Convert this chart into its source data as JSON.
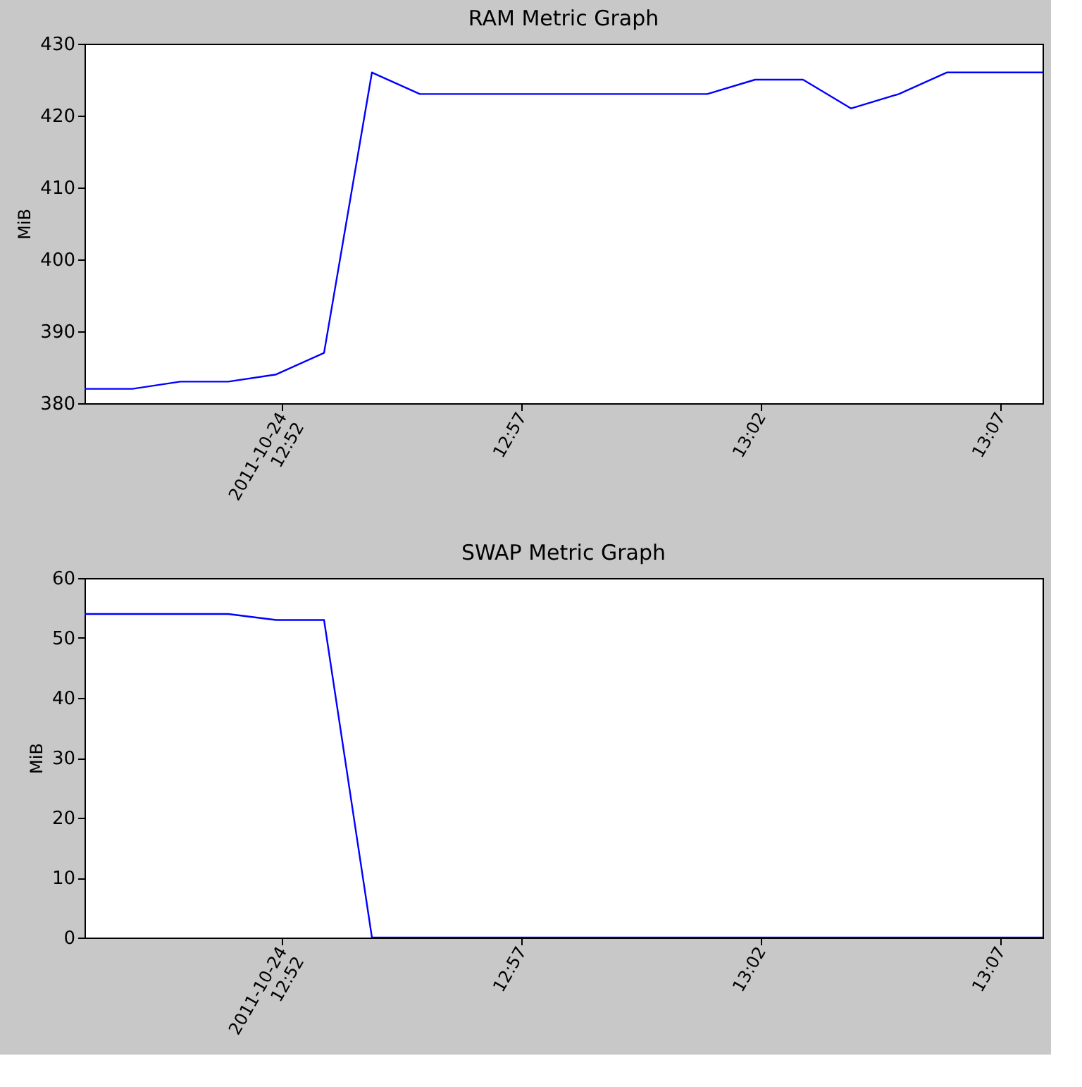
{
  "chart_data": [
    {
      "type": "line",
      "title": "RAM Metric Graph",
      "ylabel": "MiB",
      "grid": false,
      "line_style": "solid",
      "marker": "none",
      "x": [
        "2011-10-24T12:47:53",
        "2011-10-24T12:48:53",
        "2011-10-24T12:49:53",
        "2011-10-24T12:50:53",
        "2011-10-24T12:51:53",
        "2011-10-24T12:52:53",
        "2011-10-24T12:53:53",
        "2011-10-24T12:54:53",
        "2011-10-24T12:55:53",
        "2011-10-24T12:56:53",
        "2011-10-24T12:57:53",
        "2011-10-24T12:58:53",
        "2011-10-24T12:59:53",
        "2011-10-24T13:00:53",
        "2011-10-24T13:01:53",
        "2011-10-24T13:02:53",
        "2011-10-24T13:03:53",
        "2011-10-24T13:04:53",
        "2011-10-24T13:05:53",
        "2011-10-24T13:06:53",
        "2011-10-24T13:07:53"
      ],
      "series": [
        {
          "color": "#0000ff",
          "values": [
            382,
            382,
            383,
            383,
            384,
            387,
            426,
            423,
            423,
            423,
            423,
            423,
            423,
            423,
            425,
            425,
            421,
            423,
            426,
            426,
            426
          ]
        }
      ],
      "xlim": [
        "2011-10-24T12:47:53",
        "2011-10-24T13:07:53"
      ],
      "xticks": [
        {
          "value": "2011-10-24T12:52",
          "label": "2011-10-24\n12:52"
        },
        {
          "value": "2011-10-24T12:57",
          "label": "12:57"
        },
        {
          "value": "2011-10-24T13:02",
          "label": "13:02"
        },
        {
          "value": "2011-10-24T13:07",
          "label": "13:07"
        }
      ],
      "ylim": [
        380,
        430
      ],
      "yticks": [
        380,
        390,
        400,
        410,
        420,
        430
      ]
    },
    {
      "type": "line",
      "title": "SWAP Metric Graph",
      "ylabel": "MiB",
      "grid": false,
      "line_style": "solid",
      "marker": "none",
      "x": [
        "2011-10-24T12:47:53",
        "2011-10-24T12:48:53",
        "2011-10-24T12:49:53",
        "2011-10-24T12:50:53",
        "2011-10-24T12:51:53",
        "2011-10-24T12:52:53",
        "2011-10-24T12:53:53",
        "2011-10-24T12:54:53",
        "2011-10-24T12:55:53",
        "2011-10-24T12:56:53",
        "2011-10-24T12:57:53",
        "2011-10-24T12:58:53",
        "2011-10-24T12:59:53",
        "2011-10-24T13:00:53",
        "2011-10-24T13:01:53",
        "2011-10-24T13:02:53",
        "2011-10-24T13:03:53",
        "2011-10-24T13:04:53",
        "2011-10-24T13:05:53",
        "2011-10-24T13:06:53",
        "2011-10-24T13:07:53"
      ],
      "series": [
        {
          "color": "#0000ff",
          "values": [
            54,
            54,
            54,
            54,
            53,
            53,
            0,
            0,
            0,
            0,
            0,
            0,
            0,
            0,
            0,
            0,
            0,
            0,
            0,
            0,
            0
          ]
        }
      ],
      "xlim": [
        "2011-10-24T12:47:53",
        "2011-10-24T13:07:53"
      ],
      "xticks": [
        {
          "value": "2011-10-24T12:52",
          "label": "2011-10-24\n12:52"
        },
        {
          "value": "2011-10-24T12:57",
          "label": "12:57"
        },
        {
          "value": "2011-10-24T13:02",
          "label": "13:02"
        },
        {
          "value": "2011-10-24T13:07",
          "label": "13:07"
        }
      ],
      "ylim": [
        0,
        60
      ],
      "yticks": [
        0,
        10,
        20,
        30,
        40,
        50,
        60
      ]
    }
  ]
}
